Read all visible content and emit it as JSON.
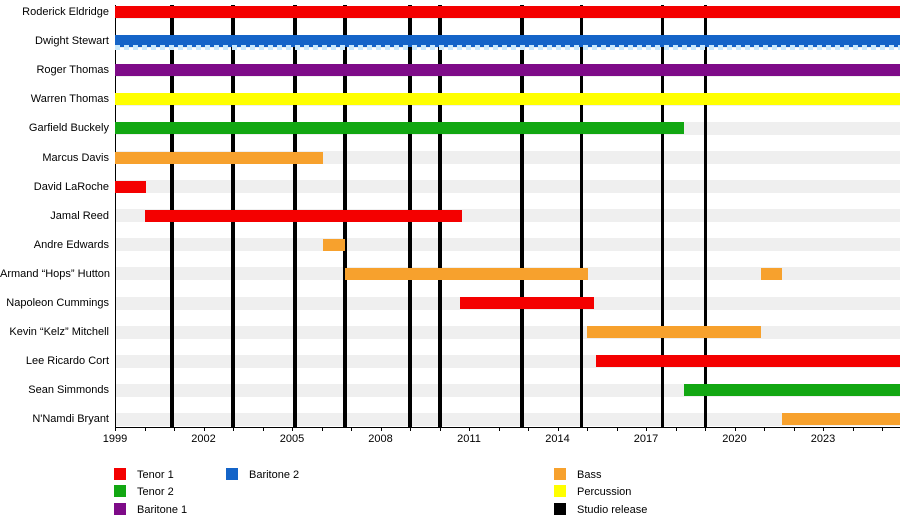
{
  "chart_data": {
    "type": "bar",
    "subtype": "band-member-timeline",
    "title": "",
    "x_axis": {
      "start_year": 1999,
      "end_year": 2025.6,
      "labeled_years": [
        1999,
        2002,
        2005,
        2008,
        2011,
        2014,
        2017,
        2020,
        2023
      ],
      "tick_interval_years": 1
    },
    "roles": {
      "tenor1": {
        "label": "Tenor 1",
        "color": "#f40000"
      },
      "tenor2": {
        "label": "Tenor 2",
        "color": "#12a712"
      },
      "baritone1": {
        "label": "Baritone 1",
        "color": "#7e0b88"
      },
      "baritone2": {
        "label": "Baritone 2",
        "color": "#1464c8"
      },
      "bass": {
        "label": "Bass",
        "color": "#f7a12d"
      },
      "percussion": {
        "label": "Percussion",
        "color": "#ffff00"
      }
    },
    "members": [
      {
        "name": "Roderick Eldridge",
        "bars": [
          {
            "role": "tenor1",
            "start": 1999,
            "end": null
          }
        ]
      },
      {
        "name": "Dwight Stewart",
        "bars": [
          {
            "role": "baritone2",
            "start": 1999,
            "end": null,
            "secondary_dash": true
          }
        ]
      },
      {
        "name": "Roger Thomas",
        "bars": [
          {
            "role": "baritone1",
            "start": 1999,
            "end": null
          }
        ]
      },
      {
        "name": "Warren Thomas",
        "bars": [
          {
            "role": "percussion",
            "start": 1999,
            "end": null
          }
        ]
      },
      {
        "name": "Garfield Buckely",
        "bars": [
          {
            "role": "tenor2",
            "start": 1999,
            "end": 2018.3
          }
        ]
      },
      {
        "name": "Marcus Davis",
        "bars": [
          {
            "role": "bass",
            "start": 1999,
            "end": 2006.05
          }
        ]
      },
      {
        "name": "David LaRoche",
        "bars": [
          {
            "role": "tenor1",
            "start": 1999,
            "end": 2000.05
          }
        ]
      },
      {
        "name": "Jamal Reed",
        "bars": [
          {
            "role": "tenor1",
            "start": 2000.0,
            "end": 2010.75
          }
        ]
      },
      {
        "name": "Andre Edwards",
        "bars": [
          {
            "role": "bass",
            "start": 2006.05,
            "end": 2006.8
          }
        ]
      },
      {
        "name": "Armand “Hops” Hutton",
        "bars": [
          {
            "role": "bass",
            "start": 2006.8,
            "end": 2015.05
          },
          {
            "role": "bass",
            "start": 2020.9,
            "end": 2021.6
          }
        ]
      },
      {
        "name": "Napoleon Cummings",
        "bars": [
          {
            "role": "tenor1",
            "start": 2010.7,
            "end": 2015.25
          }
        ]
      },
      {
        "name": "Kevin “Kelz” Mitchell",
        "bars": [
          {
            "role": "bass",
            "start": 2015.0,
            "end": 2020.9
          }
        ]
      },
      {
        "name": "Lee Ricardo Cort",
        "bars": [
          {
            "role": "tenor1",
            "start": 2015.3,
            "end": null
          }
        ]
      },
      {
        "name": "Sean Simmonds",
        "bars": [
          {
            "role": "tenor2",
            "start": 2018.3,
            "end": null
          }
        ]
      },
      {
        "name": "N'Namdi Bryant",
        "bars": [
          {
            "role": "bass",
            "start": 2021.6,
            "end": null
          }
        ]
      }
    ],
    "studio_releases": {
      "label": "Studio release",
      "color": "#000000",
      "lines": [
        {
          "year": 2000.93,
          "thin": false
        },
        {
          "year": 2003.0,
          "thin": false
        },
        {
          "year": 2005.1,
          "thin": false
        },
        {
          "year": 2006.8,
          "thin": false
        },
        {
          "year": 2009.0,
          "thin": false
        },
        {
          "year": 2010.0,
          "thin": false
        },
        {
          "year": 2012.8,
          "thin": false
        },
        {
          "year": 2014.8,
          "thin": true
        },
        {
          "year": 2017.55,
          "thin": true
        },
        {
          "year": 2019.0,
          "thin": true
        }
      ]
    },
    "secondary_dash_color": "#c9e9fd"
  },
  "legend": {
    "columns": [
      {
        "items": [
          {
            "label": "Tenor 1",
            "role": "tenor1"
          },
          {
            "label": "Tenor 2",
            "role": "tenor2"
          },
          {
            "label": "Baritone 1",
            "role": "baritone1"
          }
        ]
      },
      {
        "items": [
          {
            "label": "Baritone 2",
            "role": "baritone2"
          }
        ]
      },
      {
        "items": [
          {
            "label": "Bass",
            "role": "bass"
          },
          {
            "label": "Percussion",
            "role": "percussion"
          },
          {
            "label": "Studio release",
            "color": "#000000"
          }
        ]
      }
    ]
  }
}
